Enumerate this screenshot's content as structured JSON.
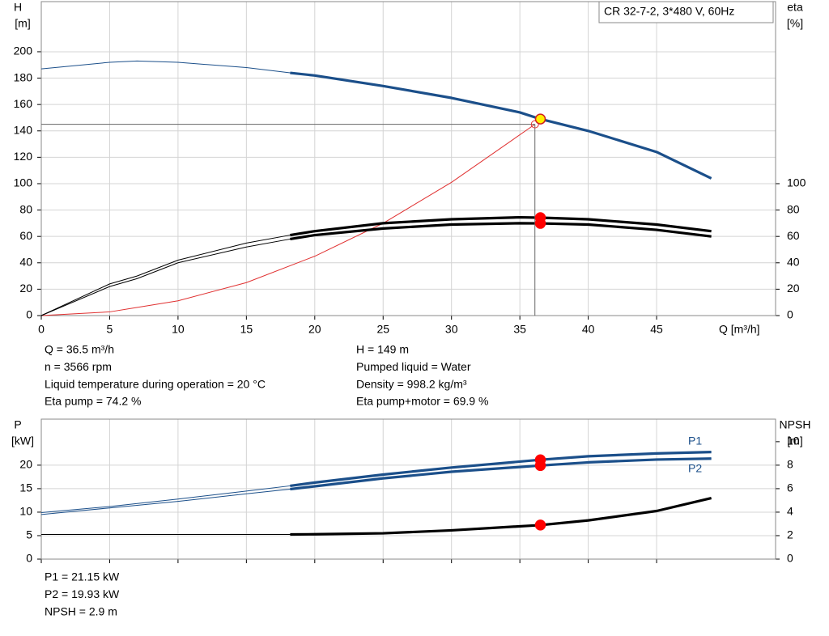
{
  "chart_data": [
    {
      "type": "line",
      "legend_box": "CR 32-7-2, 3*480 V, 60Hz",
      "ylabel": [
        "H",
        "[m]"
      ],
      "y2label": [
        "eta",
        "[%]"
      ],
      "xlabel": "Q [m³/h]",
      "xlim": [
        0,
        53.7
      ],
      "xticks": [
        0,
        5,
        10,
        15,
        20,
        25,
        30,
        35,
        40,
        45
      ],
      "ylim": [
        0,
        238
      ],
      "yticks": [
        0,
        20,
        40,
        60,
        80,
        100,
        120,
        140,
        160,
        180,
        200
      ],
      "y2lim": [
        0,
        238
      ],
      "y2ticks": [
        0,
        20,
        40,
        60,
        80,
        100
      ],
      "grid": true,
      "operating_range": [
        18.2,
        49
      ],
      "x": [
        0,
        5,
        7,
        10,
        15,
        18.2,
        20,
        25,
        30,
        35,
        36.5,
        40,
        45,
        49
      ],
      "series": [
        {
          "color": "#1b4f8a",
          "values": [
            187,
            192,
            193,
            192,
            188,
            184,
            182,
            174,
            165,
            154,
            149,
            140,
            124,
            104
          ]
        },
        {
          "color": "#000000",
          "axis": "y2",
          "values": [
            0,
            24,
            30,
            42,
            55,
            61,
            64,
            70,
            73,
            74.5,
            74.2,
            73,
            69,
            64
          ]
        },
        {
          "color": "#000000",
          "axis": "y2",
          "values": [
            0,
            22,
            28,
            40,
            52,
            58,
            61,
            66,
            69,
            70,
            69.9,
            69,
            65,
            60
          ]
        }
      ],
      "system_curve": {
        "color": "#e03030",
        "x": [
          0,
          5,
          10,
          15,
          20,
          25,
          30,
          36.1
        ],
        "values": [
          0,
          2.8,
          11.2,
          25,
          45,
          70,
          101,
          145
        ]
      },
      "points": [
        {
          "x": 36.1,
          "y": 145,
          "color": "#e03030",
          "hollow": true
        },
        {
          "x": 36.5,
          "y": 74.2,
          "color": "#ff0000",
          "axis": "y2"
        },
        {
          "x": 36.5,
          "y": 69.9,
          "color": "#ff0000",
          "axis": "y2"
        },
        {
          "x": 36.5,
          "y": 149,
          "color": "#ffee00"
        }
      ],
      "info_left": [
        "Q = 36.5 m³/h",
        "n = 3566 rpm",
        "Liquid temperature during operation = 20 °C",
        "Eta pump = 74.2 %"
      ],
      "info_right": [
        "H = 149 m",
        "Pumped liquid = Water",
        "Density = 998.2 kg/m³",
        "Eta pump+motor = 69.9 %"
      ]
    },
    {
      "type": "line",
      "ylabel": [
        "P",
        "[kW]"
      ],
      "y2label": [
        "NPSH",
        "[m]"
      ],
      "xlim": [
        0,
        53.7
      ],
      "xticks": [
        0,
        5,
        10,
        15,
        20,
        25,
        30,
        35,
        40,
        45
      ],
      "xtick_labels": false,
      "ylim": [
        0,
        29.8
      ],
      "yticks": [
        0,
        5,
        10,
        15,
        20
      ],
      "y2lim": [
        0,
        11.92
      ],
      "y2ticks": [
        0,
        2,
        4,
        6,
        8,
        10
      ],
      "grid": true,
      "operating_range": [
        18.2,
        49
      ],
      "x": [
        0,
        5,
        10,
        15,
        18.2,
        20,
        25,
        30,
        36.5,
        40,
        45,
        49
      ],
      "series": [
        {
          "name": "P1",
          "color": "#1b4f8a",
          "values": [
            9.9,
            11.2,
            12.8,
            14.5,
            15.6,
            16.3,
            18.0,
            19.5,
            21.15,
            21.9,
            22.5,
            22.8
          ]
        },
        {
          "name": "P2",
          "color": "#1b4f8a",
          "values": [
            9.5,
            10.9,
            12.3,
            13.9,
            14.9,
            15.5,
            17.2,
            18.6,
            19.93,
            20.6,
            21.2,
            21.4
          ]
        },
        {
          "color": "#000000",
          "axis": "y2",
          "values": [
            2.1,
            2.1,
            2.1,
            2.1,
            2.1,
            2.12,
            2.2,
            2.45,
            2.9,
            3.3,
            4.1,
            5.2
          ]
        }
      ],
      "points": [
        {
          "x": 36.5,
          "y": 21.15,
          "color": "#ff0000"
        },
        {
          "x": 36.5,
          "y": 19.93,
          "color": "#ff0000"
        },
        {
          "x": 36.5,
          "y": 2.9,
          "color": "#ff0000",
          "axis": "y2"
        }
      ],
      "info_left": [
        "P1 = 21.15 kW",
        "P2 = 19.93 kW",
        "NPSH = 2.9 m"
      ]
    }
  ]
}
